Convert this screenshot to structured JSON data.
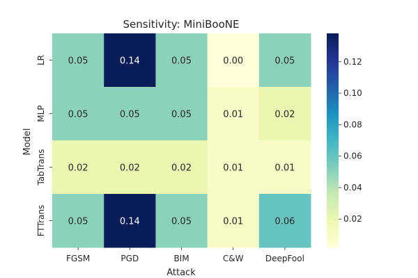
{
  "chart_data": {
    "type": "heatmap",
    "title": "Sensitivity: MiniBooNE",
    "xlabel": "Attack",
    "ylabel": "Model",
    "x_categories": [
      "FGSM",
      "PGD",
      "BIM",
      "C&W",
      "DeepFool"
    ],
    "y_categories": [
      "LR",
      "MLP",
      "TabTrans",
      "FTTrans"
    ],
    "values": [
      [
        0.05,
        0.14,
        0.05,
        0.0,
        0.05
      ],
      [
        0.05,
        0.05,
        0.05,
        0.01,
        0.02
      ],
      [
        0.02,
        0.02,
        0.02,
        0.01,
        0.01
      ],
      [
        0.05,
        0.14,
        0.05,
        0.01,
        0.06
      ]
    ],
    "value_labels": [
      [
        "0.05",
        "0.14",
        "0.05",
        "0.00",
        "0.05"
      ],
      [
        "0.05",
        "0.05",
        "0.05",
        "0.01",
        "0.02"
      ],
      [
        "0.02",
        "0.02",
        "0.02",
        "0.01",
        "0.01"
      ],
      [
        "0.05",
        "0.14",
        "0.05",
        "0.01",
        "0.06"
      ]
    ],
    "colormap": "YlGnBu",
    "colorbar": {
      "range": [
        0.002,
        0.138
      ],
      "ticks": [
        0.02,
        0.04,
        0.06,
        0.08,
        0.1,
        0.12
      ],
      "tick_labels": [
        "0.02",
        "0.04",
        "0.06",
        "0.08",
        "0.10",
        "0.12"
      ]
    }
  }
}
